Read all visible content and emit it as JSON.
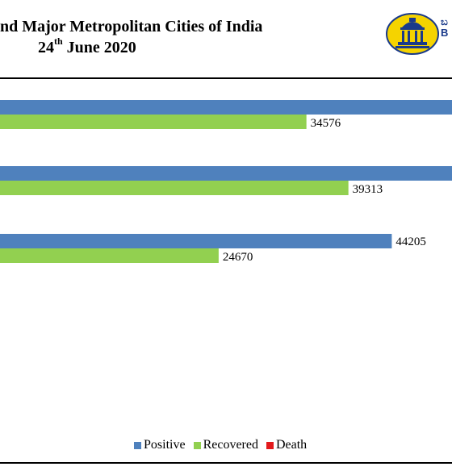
{
  "header": {
    "title_line1": "nd Major Metropolitan Cities of India",
    "title_date_day": "24",
    "title_date_suffix": "th",
    "title_date_rest": " June 2020",
    "logo_text_line1": "ಬ",
    "logo_text_line2": "B"
  },
  "colors": {
    "positive": "#4f81bd",
    "recovered": "#92d050",
    "death": "#e31a1c"
  },
  "chart_data": {
    "type": "bar",
    "orientation": "horizontal",
    "x_axis_visible_range": [
      0,
      51000
    ],
    "groups": [
      {
        "positive": null,
        "recovered": 34576,
        "recovered_label": "34576"
      },
      {
        "positive": null,
        "recovered": 39313,
        "recovered_label": "39313"
      },
      {
        "positive": 44205,
        "positive_label": "44205",
        "recovered": 24670,
        "recovered_label": "24670"
      }
    ],
    "legend": [
      "Positive",
      "Recovered",
      "Death"
    ],
    "legend_placement": "bottom"
  }
}
